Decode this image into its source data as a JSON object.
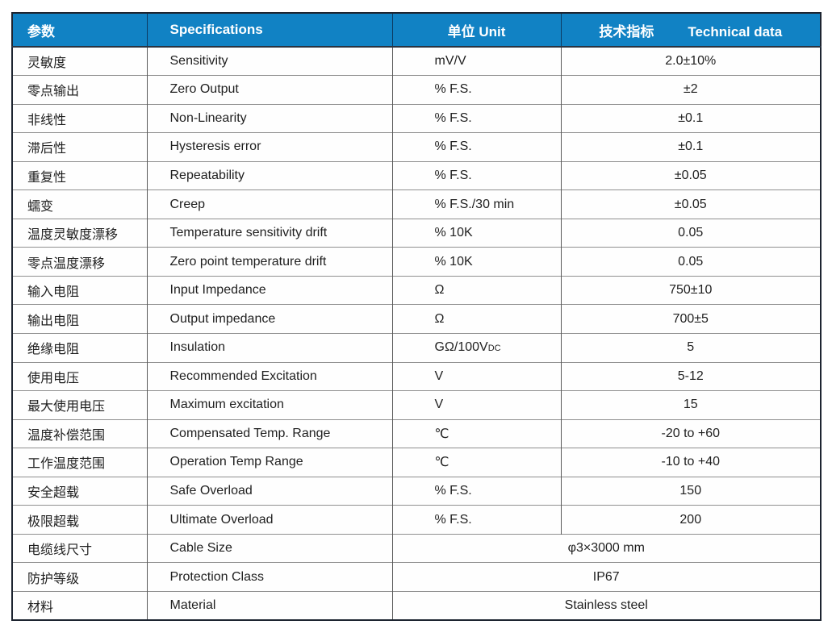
{
  "header": {
    "param": "参数",
    "spec": "Specifications",
    "unit": "单位 Unit",
    "tech_cn": "技术指标",
    "tech_en": "Technical data"
  },
  "colors": {
    "header_bg": "#1182c4",
    "header_text": "#ffffff",
    "outer_border": "#1d2430",
    "row_line": "#8f8f8f",
    "col_line": "#5a5a5a",
    "header_divider": "#0d3a61",
    "body_text": "#1f1f1f"
  },
  "rows": [
    {
      "param": "灵敏度",
      "spec": "Sensitivity",
      "unit": "mV/V",
      "value": "2.0±10%"
    },
    {
      "param": "零点输出",
      "spec": "Zero Output",
      "unit": "% F.S.",
      "value": "±2"
    },
    {
      "param": "非线性",
      "spec": "Non-Linearity",
      "unit": "% F.S.",
      "value": "±0.1"
    },
    {
      "param": "滞后性",
      "spec": "Hysteresis error",
      "unit": "% F.S.",
      "value": "±0.1"
    },
    {
      "param": "重复性",
      "spec": "Repeatability",
      "unit": "% F.S.",
      "value": "±0.05"
    },
    {
      "param": "蠕变",
      "spec": "Creep",
      "unit": "% F.S./30 min",
      "value": "±0.05"
    },
    {
      "param": "温度灵敏度漂移",
      "spec": "Temperature sensitivity drift",
      "unit": "% 10K",
      "value": "0.05"
    },
    {
      "param": "零点温度漂移",
      "spec": "Zero point temperature drift",
      "unit": "% 10K",
      "value": "0.05"
    },
    {
      "param": "输入电阻",
      "spec": "Input Impedance",
      "unit": "Ω",
      "value": "750±10"
    },
    {
      "param": "输出电阻",
      "spec": "Output impedance",
      "unit": "Ω",
      "value": "700±5"
    },
    {
      "param": "绝缘电阻",
      "spec": "Insulation",
      "unit": "GΩ/100V",
      "unit_sub": "DC",
      "value": "5"
    },
    {
      "param": "使用电压",
      "spec": "Recommended Excitation",
      "unit": "V",
      "value": "5-12"
    },
    {
      "param": "最大使用电压",
      "spec": "Maximum excitation",
      "unit": "V",
      "value": "15"
    },
    {
      "param": "温度补偿范围",
      "spec": "Compensated Temp. Range",
      "unit": "℃",
      "value": "-20 to +60"
    },
    {
      "param": "工作温度范围",
      "spec": "Operation Temp Range",
      "unit": "℃",
      "value": "-10 to +40"
    },
    {
      "param": "安全超载",
      "spec": "Safe Overload",
      "unit": "% F.S.",
      "value": "150"
    },
    {
      "param": "极限超载",
      "spec": "Ultimate Overload",
      "unit": "% F.S.",
      "value": "200"
    },
    {
      "param": "电缆线尺寸",
      "spec": "Cable Size",
      "merged": "φ3×3000 mm"
    },
    {
      "param": "防护等级",
      "spec": "Protection Class",
      "merged": "IP67"
    },
    {
      "param": "材料",
      "spec": "Material",
      "merged": "Stainless steel"
    }
  ]
}
